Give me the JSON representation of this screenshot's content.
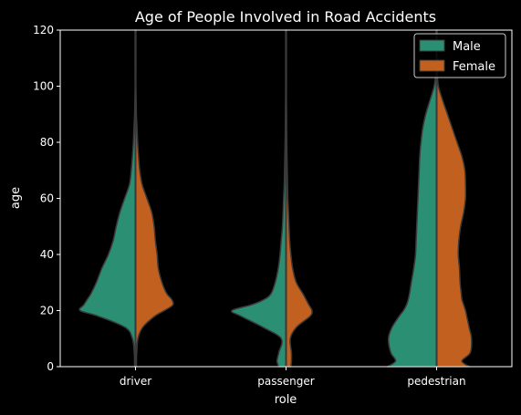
{
  "chart_data": {
    "type": "violin",
    "split": true,
    "title": "Age of People Involved in Road Accidents",
    "xlabel": "role",
    "ylabel": "age",
    "ylim": [
      0,
      120
    ],
    "yticks": [
      0,
      20,
      40,
      60,
      80,
      100,
      120
    ],
    "categories": [
      "driver",
      "passenger",
      "pedestrian"
    ],
    "legend_position": "upper-right",
    "grid": false,
    "colors": {
      "background": "#000000",
      "axes": "#ffffff",
      "outline": "#3a3a3a",
      "series": [
        "#2a8f73",
        "#c2611f"
      ]
    },
    "density_y": [
      0,
      2,
      5,
      10,
      14,
      18,
      20,
      22,
      24,
      26,
      30,
      35,
      40,
      45,
      50,
      55,
      60,
      65,
      70,
      75,
      80,
      85,
      90,
      95,
      100,
      105,
      110,
      115,
      120
    ],
    "series": [
      {
        "name": "Male",
        "density": [
          [
            0.015,
            0.015,
            0.02,
            0.05,
            0.17,
            0.62,
            0.92,
            0.86,
            0.8,
            0.74,
            0.65,
            0.56,
            0.45,
            0.37,
            0.32,
            0.26,
            0.18,
            0.1,
            0.07,
            0.05,
            0.035,
            0.025,
            0.014,
            0.01,
            0.006,
            0.006,
            0.006,
            0.006,
            0.006
          ],
          [
            0.12,
            0.15,
            0.12,
            0.08,
            0.38,
            0.75,
            0.9,
            0.58,
            0.36,
            0.25,
            0.18,
            0.13,
            0.1,
            0.08,
            0.06,
            0.05,
            0.04,
            0.03,
            0.025,
            0.02,
            0.015,
            0.012,
            0.01,
            0.008,
            0.006,
            0.006,
            0.006,
            0.006,
            0.006
          ],
          [
            0.82,
            0.68,
            0.76,
            0.8,
            0.74,
            0.62,
            0.55,
            0.5,
            0.47,
            0.45,
            0.42,
            0.38,
            0.35,
            0.34,
            0.33,
            0.32,
            0.31,
            0.3,
            0.29,
            0.28,
            0.26,
            0.23,
            0.18,
            0.11,
            0.04,
            0.012,
            0.006,
            0.006,
            0.006
          ]
        ]
      },
      {
        "name": "Female",
        "density": [
          [
            0.015,
            0.015,
            0.02,
            0.04,
            0.12,
            0.32,
            0.48,
            0.62,
            0.6,
            0.52,
            0.44,
            0.38,
            0.36,
            0.33,
            0.31,
            0.27,
            0.19,
            0.11,
            0.07,
            0.05,
            0.035,
            0.025,
            0.014,
            0.01,
            0.006,
            0.006,
            0.006,
            0.006,
            0.006
          ],
          [
            0.08,
            0.09,
            0.09,
            0.07,
            0.17,
            0.4,
            0.43,
            0.38,
            0.33,
            0.28,
            0.17,
            0.11,
            0.08,
            0.06,
            0.05,
            0.04,
            0.03,
            0.025,
            0.02,
            0.015,
            0.012,
            0.01,
            0.008,
            0.006,
            0.006,
            0.006,
            0.006,
            0.006,
            0.006
          ],
          [
            0.55,
            0.42,
            0.56,
            0.58,
            0.54,
            0.5,
            0.48,
            0.45,
            0.42,
            0.41,
            0.39,
            0.38,
            0.36,
            0.37,
            0.4,
            0.45,
            0.48,
            0.48,
            0.47,
            0.42,
            0.34,
            0.26,
            0.18,
            0.1,
            0.03,
            0.01,
            0.006,
            0.006,
            0.006
          ]
        ]
      }
    ]
  }
}
